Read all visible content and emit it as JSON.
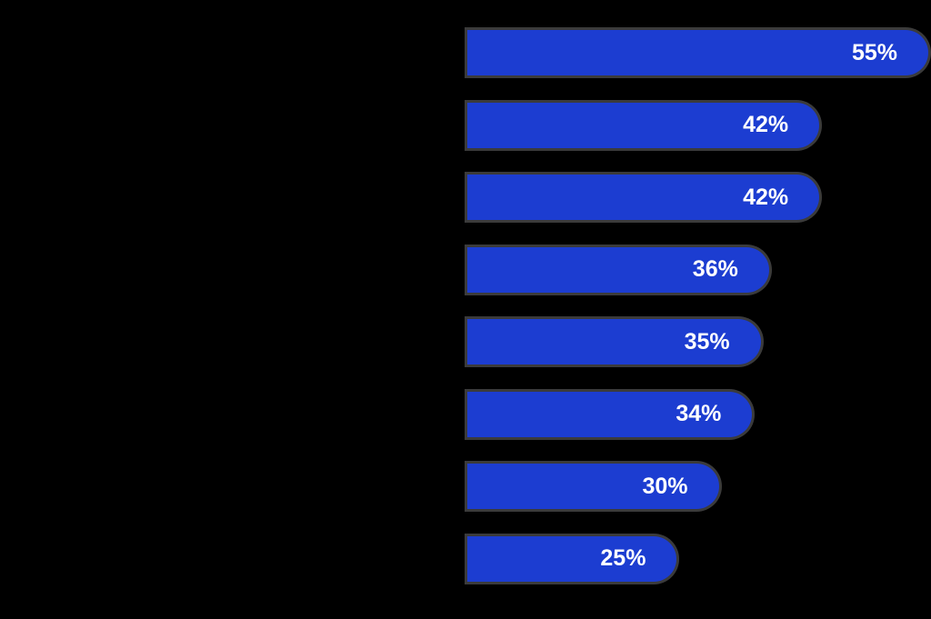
{
  "chart_data": {
    "type": "bar",
    "orientation": "horizontal",
    "values": [
      55,
      42,
      42,
      36,
      35,
      34,
      30,
      25
    ],
    "labels": [
      "55%",
      "42%",
      "42%",
      "36%",
      "35%",
      "34%",
      "30%",
      "25%"
    ],
    "value_label_position": "inside-right",
    "xlim": [
      0,
      55
    ],
    "grid": false,
    "legend": false,
    "axis_ticks_visible": false,
    "category_labels_visible": false
  },
  "colors": {
    "background": "#000000",
    "bar": "#1c3dd1",
    "bar_outline": "#3b3b3b",
    "value_label": "#ffffff"
  }
}
